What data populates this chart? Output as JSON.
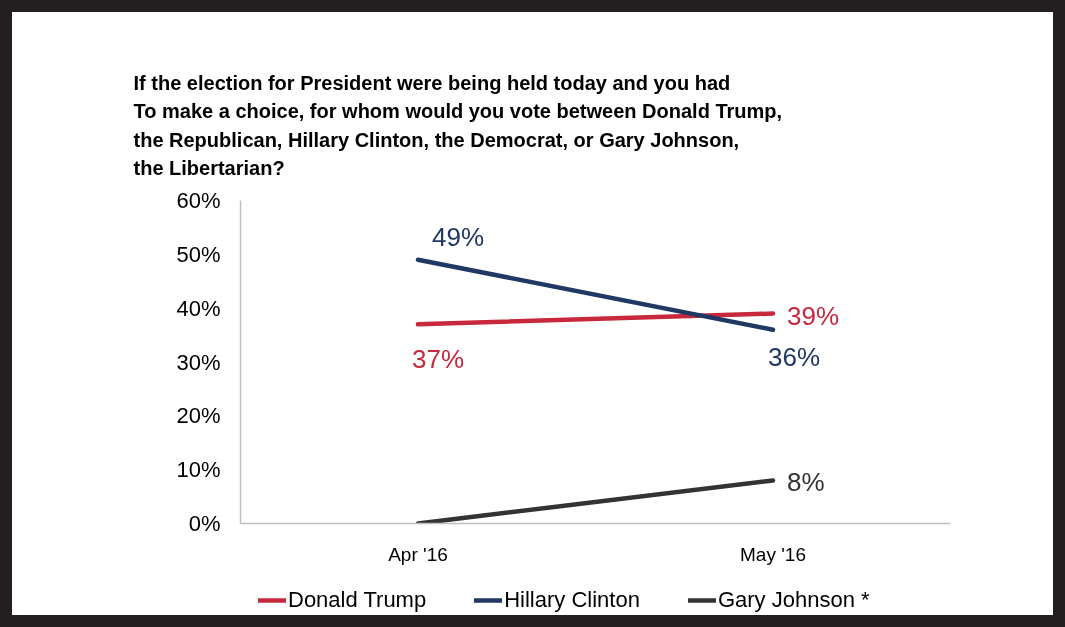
{
  "chart_data": {
    "type": "line",
    "title": "If the election for President were being held today and you had To make a choice, for whom would you vote between Donald Trump, the Republican, Hillary Clinton, the Democrat, or Gary Johnson, the Libertarian?",
    "categories": [
      "Apr '16",
      "May '16"
    ],
    "series": [
      {
        "name": "Donald Trump",
        "color": "#c8283c",
        "values": [
          37,
          39
        ],
        "value_labels": [
          "37%",
          "39%"
        ]
      },
      {
        "name": "Hillary Clinton",
        "color": "#1f3864",
        "values": [
          49,
          36
        ],
        "value_labels": [
          "49%",
          "36%"
        ]
      },
      {
        "name": "Gary Johnson *",
        "color": "#333333",
        "values": [
          0,
          8
        ],
        "value_labels": [
          null,
          "8%"
        ]
      }
    ],
    "ylim": [
      0,
      60
    ],
    "yticks": [
      {
        "value": 0,
        "label": "0%"
      },
      {
        "value": 10,
        "label": "10%"
      },
      {
        "value": 20,
        "label": "20%"
      },
      {
        "value": 30,
        "label": "30%"
      },
      {
        "value": 40,
        "label": "40%"
      },
      {
        "value": 50,
        "label": "50%"
      },
      {
        "value": 60,
        "label": "60%"
      }
    ],
    "grid": false,
    "legend": "bottom",
    "line_style": "solid"
  }
}
